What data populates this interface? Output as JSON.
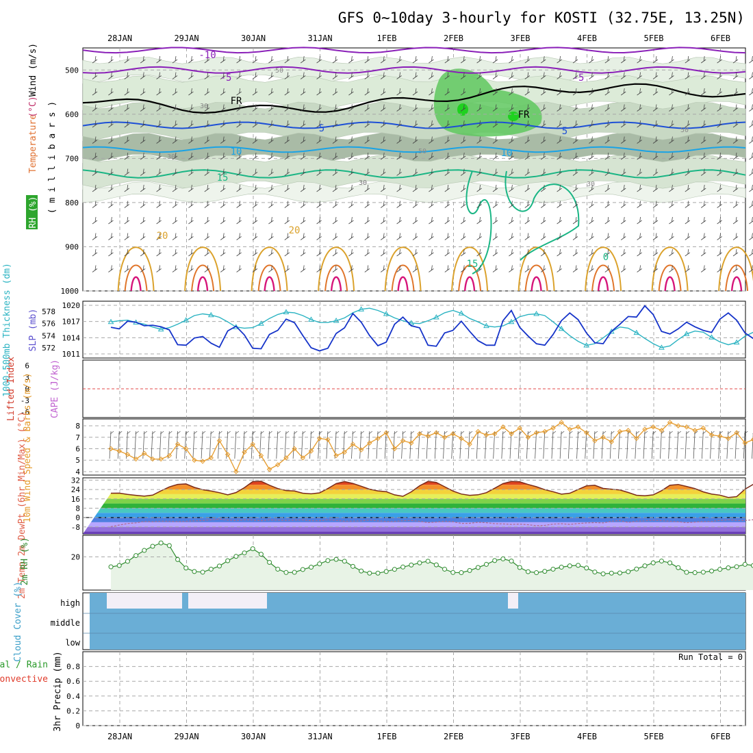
{
  "title": "GFS 0~10day 3-hourly for KOSTI (32.75E, 13.25N)",
  "dates": [
    "28JAN",
    "29JAN",
    "30JAN",
    "31JAN",
    "1FEB",
    "2FEB",
    "3FEB",
    "4FEB",
    "5FEB",
    "6FEB"
  ],
  "colors": {
    "grid": "#a8a8a8",
    "purple_temp": "#8a1fb8",
    "blue_temp": "#1d4fd6",
    "cyan_temp": "#19a3e6",
    "green_temp": "#19b584",
    "orange_temp": "#dba22c",
    "dark_orange_temp": "#e0752a",
    "magenta_temp": "#d6157a",
    "slp": "#1533c9",
    "thickness": "#2ab3c2",
    "wind_speed": "#e59a2a",
    "rh2m": "#2e8b2e",
    "cloud": "#6aaed6",
    "tdew": "#b06a8c",
    "zero_li": "#e34a4a"
  },
  "chart_data": [
    {
      "type": "heatmap",
      "panel": "upper-air",
      "ylabel_parts": [
        "RH (%)",
        "Temperature",
        "(°C)",
        "Wind (m/s)"
      ],
      "ylabel_unit": "( m i l l i b a r s )",
      "yticks": [
        500,
        600,
        700,
        800,
        900,
        1000
      ],
      "ylim": [
        1000,
        450
      ],
      "isotherm_labels": [
        {
          "text": "-10"
        },
        {
          "text": "-5"
        },
        {
          "text": "-5"
        },
        {
          "text": "FR"
        },
        {
          "text": "FR"
        },
        {
          "text": "5"
        },
        {
          "text": "5"
        },
        {
          "text": "10"
        },
        {
          "text": "10"
        },
        {
          "text": "15"
        },
        {
          "text": "15"
        },
        {
          "text": "20"
        },
        {
          "text": "20"
        },
        {
          "text": "0"
        }
      ],
      "rh_labels": [
        {
          "text": "30"
        },
        {
          "text": "30"
        },
        {
          "text": "50"
        },
        {
          "text": "30"
        },
        {
          "text": "50"
        },
        {
          "text": "30"
        },
        {
          "text": "50"
        },
        {
          "text": "30"
        }
      ]
    },
    {
      "type": "line",
      "panel": "slp-thickness",
      "ylabel_left": "1000-500mb Thickness (dm)",
      "ylabel_right": "SLP (mb)",
      "left_ticks": [
        572,
        574,
        576,
        578
      ],
      "right_ticks": [
        1011,
        1014,
        1017,
        1020
      ],
      "series": [
        {
          "name": "SLP (mb)",
          "axis": "right",
          "values": [
            1016.2,
            1015.9,
            1017.4,
            1017.2,
            1016.5,
            1016.6,
            1016.3,
            1015.7,
            1012.8,
            1012.7,
            1014.1,
            1014.4,
            1013.1,
            1012.3,
            1015.5,
            1016.4,
            1014.7,
            1012.1,
            1012.0,
            1014.8,
            1015.6,
            1017.8,
            1017.1,
            1014.6,
            1012.2,
            1011.6,
            1012.1,
            1015.0,
            1016.1,
            1018.9,
            1017.2,
            1014.6,
            1012.6,
            1013.3,
            1016.8,
            1018.2,
            1016.5,
            1016.1,
            1012.7,
            1012.5,
            1015.1,
            1015.6,
            1017.4,
            1015.4,
            1013.6,
            1012.7,
            1012.7,
            1017.5,
            1019.5,
            1016.2,
            1014.5,
            1013.0,
            1012.7,
            1014.8,
            1017.5,
            1019.0,
            1017.7,
            1015.1,
            1013.2,
            1013.0,
            1015.4,
            1016.8,
            1018.3,
            1018.2,
            1020.4,
            1018.7,
            1015.4,
            1014.9,
            1015.9,
            1017.2,
            1016.3,
            1015.6,
            1015.2,
            1017.8,
            1019.0,
            1017.6,
            1015.1,
            1014.0,
            1016.9,
            1018.8,
            1016.9,
            1015.0,
            1013.9,
            1015.4,
            1017.9,
            1019.0,
            1016.9,
            1014.8,
            1013.2,
            1013.8,
            1016.4,
            1018.7
          ]
        },
        {
          "name": "1000-500mb Thickness (dm)",
          "axis": "left",
          "values": [
            576.6,
            576.8,
            576.9,
            576.5,
            576.2,
            575.7,
            575.3,
            575.6,
            576.2,
            576.9,
            577.7,
            578.0,
            577.8,
            577.4,
            576.6,
            575.7,
            575.5,
            575.6,
            576.3,
            577.2,
            577.9,
            578.3,
            578.2,
            577.7,
            577.0,
            576.5,
            576.5,
            576.8,
            577.3,
            578.2,
            578.8,
            579.0,
            578.6,
            578.0,
            577.3,
            576.8,
            576.4,
            576.3,
            576.8,
            577.4,
            578.2,
            578.6,
            578.1,
            577.2,
            576.6,
            575.9,
            575.7,
            575.9,
            576.6,
            577.5,
            577.9,
            578.0,
            577.7,
            576.6,
            575.4,
            574.2,
            573.2,
            572.5,
            572.8,
            573.8,
            574.9,
            575.7,
            575.5,
            574.7,
            573.7,
            572.8,
            572.1,
            572.4,
            573.5,
            574.5,
            575.0,
            574.8,
            573.9,
            573.1,
            572.6,
            573.0,
            574.1,
            574.8,
            574.9,
            574.1,
            573.4,
            573.1,
            573.8,
            575.1,
            576.4,
            576.4,
            576.1,
            575.3,
            574.6,
            574.3,
            574.1,
            574.2
          ]
        }
      ]
    },
    {
      "type": "line",
      "panel": "stability",
      "ylabel_left": "Lifted Index",
      "ylabel_right": "CAPE (J/kg)",
      "yticks": [
        6,
        3,
        0,
        -3,
        -6
      ],
      "ylim": [
        6,
        -6
      ],
      "reference_line": 0
    },
    {
      "type": "line",
      "panel": "wind10m",
      "ylabel": "10m Wind Speed & Barbs (m/s)",
      "yticks": [
        4,
        5,
        6,
        7,
        8
      ],
      "ylim": [
        3.7,
        8.6
      ],
      "series": [
        {
          "name": "10m Wind Speed",
          "values": [
            6.0,
            5.8,
            5.5,
            5.1,
            5.6,
            5.1,
            5.1,
            5.4,
            6.4,
            6.0,
            5.0,
            4.9,
            5.2,
            6.7,
            5.5,
            4.0,
            5.7,
            6.4,
            5.4,
            4.2,
            4.6,
            5.2,
            6.0,
            5.2,
            5.8,
            6.9,
            6.8,
            5.4,
            5.7,
            6.4,
            5.9,
            6.5,
            6.9,
            7.4,
            6.0,
            6.7,
            6.5,
            7.3,
            7.1,
            7.4,
            7.0,
            7.3,
            6.9,
            6.4,
            7.5,
            7.2,
            7.3,
            7.9,
            7.3,
            7.8,
            7.0,
            7.4,
            7.5,
            7.8,
            8.3,
            7.7,
            7.9,
            7.4,
            6.7,
            7.0,
            6.6,
            7.5,
            7.6,
            6.9,
            7.7,
            7.9,
            7.6,
            8.3,
            8.0,
            7.9,
            7.6,
            7.8,
            7.2,
            7.1,
            6.9,
            7.4,
            6.5,
            6.8,
            7.2,
            6.5,
            6.5,
            7.2,
            6.1,
            6.1,
            6.5,
            5.1,
            5.2,
            5.4,
            5.4,
            5.7,
            6.1,
            7.9
          ]
        }
      ]
    },
    {
      "type": "area",
      "panel": "temperature2m",
      "ylabel": "2m Temp 2m DewPt (6hr Min/Max) (°C)",
      "yticks": [
        32,
        24,
        16,
        8,
        0,
        -8
      ],
      "ylim": [
        -14,
        34
      ],
      "series": [
        {
          "name": "2m Temp",
          "values": [
            20.8,
            20.9,
            19.8,
            19.0,
            18.3,
            19.2,
            22.9,
            26.2,
            28.4,
            28.8,
            25.8,
            23.8,
            22.7,
            21.3,
            19.4,
            21.4,
            25.6,
            30.8,
            31.1,
            27.7,
            24.8,
            23.1,
            22.7,
            20.8,
            20.3,
            21.1,
            24.8,
            29.1,
            30.8,
            29.2,
            26.8,
            24.3,
            22.8,
            22.2,
            19.4,
            18.2,
            22.0,
            27.2,
            30.9,
            30.1,
            26.4,
            22.7,
            20.1,
            19.0,
            19.5,
            21.3,
            25.1,
            29.1,
            30.9,
            30.6,
            28.3,
            26.4,
            23.9,
            22.1,
            20.0,
            20.8,
            24.0,
            27.1,
            27.6,
            24.9,
            24.3,
            23.6,
            21.5,
            19.1,
            18.6,
            19.4,
            23.0,
            27.6,
            28.3,
            26.6,
            24.8,
            22.0,
            20.1,
            19.2,
            17.2,
            17.9,
            24.3,
            28.5,
            30.4,
            30.5,
            26.9,
            23.1,
            22.2,
            20.1,
            20.4,
            21.5,
            24.5,
            28.7,
            29.7,
            26.8,
            23.3,
            21.3
          ]
        },
        {
          "name": "2m DewPt",
          "values": [
            -7.8,
            -6.4,
            -5.1,
            -4.5,
            -3.3,
            -3.5,
            -3.1,
            -3.2,
            -3.4,
            -3.2,
            -2.8,
            -2.6,
            -1.8,
            -1.3,
            -2.1,
            -2.5,
            -1.9,
            -2.1,
            -2.7,
            -2.0,
            -2.2,
            -2.4,
            -2.1,
            -2.0,
            -2.7,
            -2.7,
            -1.9,
            -2.4,
            -3.1,
            -3.0,
            -2.8,
            -2.1,
            -2.8,
            -3.3,
            -3.3,
            -2.7,
            -2.5,
            -3.2,
            -4.3,
            -3.8,
            -3.1,
            -3.5,
            -5.0,
            -4.9,
            -4.0,
            -4.4,
            -5.2,
            -5.4,
            -5.8,
            -5.6,
            -6.1,
            -6.9,
            -6.7,
            -5.6,
            -5.3,
            -5.8,
            -5.1,
            -4.6,
            -4.3,
            -4.6,
            -3.2,
            -2.6,
            -4.1,
            -3.1,
            -2.8,
            -2.3,
            -2.7,
            -3.1,
            -3.5,
            -4.4,
            -3.8,
            -3.3,
            -3.3,
            -2.4,
            -1.9,
            -2.4,
            -2.5,
            -1.8,
            -1.5,
            -1.3,
            -1.7,
            -0.9,
            -0.5,
            -0.2,
            -0.4,
            0.1,
            0.2,
            -0.7,
            -1.1,
            -1.1,
            -0.8,
            -0.2
          ]
        }
      ]
    },
    {
      "type": "line",
      "panel": "rh2m",
      "ylabel": "2m RH (%)",
      "yticks": [
        20
      ],
      "ylim": [
        0,
        33
      ],
      "series": [
        {
          "name": "2m RH",
          "values": [
            14.0,
            14.8,
            17.3,
            20.8,
            23.9,
            26.4,
            28.4,
            26.8,
            18.4,
            13.3,
            11.2,
            10.8,
            12.6,
            14.5,
            17.7,
            20.3,
            22.4,
            24.9,
            21.6,
            16.7,
            12.6,
            10.6,
            10.7,
            12.4,
            13.8,
            15.8,
            17.8,
            18.5,
            17.4,
            14.3,
            11.5,
            10.2,
            10.2,
            11.2,
            12.5,
            13.9,
            15.1,
            16.4,
            17.4,
            15.2,
            12.6,
            10.6,
            10.5,
            11.8,
            13.6,
            15.5,
            17.8,
            18.8,
            17.5,
            13.6,
            11.1,
            10.5,
            11.3,
            12.6,
            13.8,
            14.6,
            14.9,
            13.3,
            10.9,
            9.8,
            10.2,
            10.3,
            11.1,
            12.7,
            14.6,
            16.4,
            17.5,
            16.4,
            13.5,
            10.7,
            10.5,
            10.8,
            11.5,
            12.5,
            13.4,
            14.1,
            15.5,
            14.8,
            12.3,
            10.6,
            11.0,
            12.1,
            13.6,
            15.3,
            16.5,
            18.2,
            21.5,
            24.4,
            20.4,
            12.4,
            10.7,
            11.5
          ]
        }
      ]
    },
    {
      "type": "bar",
      "panel": "cloud-cover",
      "ylabel": "Cloud Cover (%)",
      "levels": [
        "high",
        "middle",
        "low"
      ]
    },
    {
      "type": "bar",
      "panel": "precip",
      "ylabel_parts": [
        "3hr Precip (mm)",
        "Total / Rain",
        "Convective"
      ],
      "yticks": [
        0,
        0.2,
        0.4,
        0.6,
        0.8
      ],
      "ylim": [
        0,
        1.0
      ],
      "run_total": "Run Total = 0",
      "values": []
    }
  ]
}
